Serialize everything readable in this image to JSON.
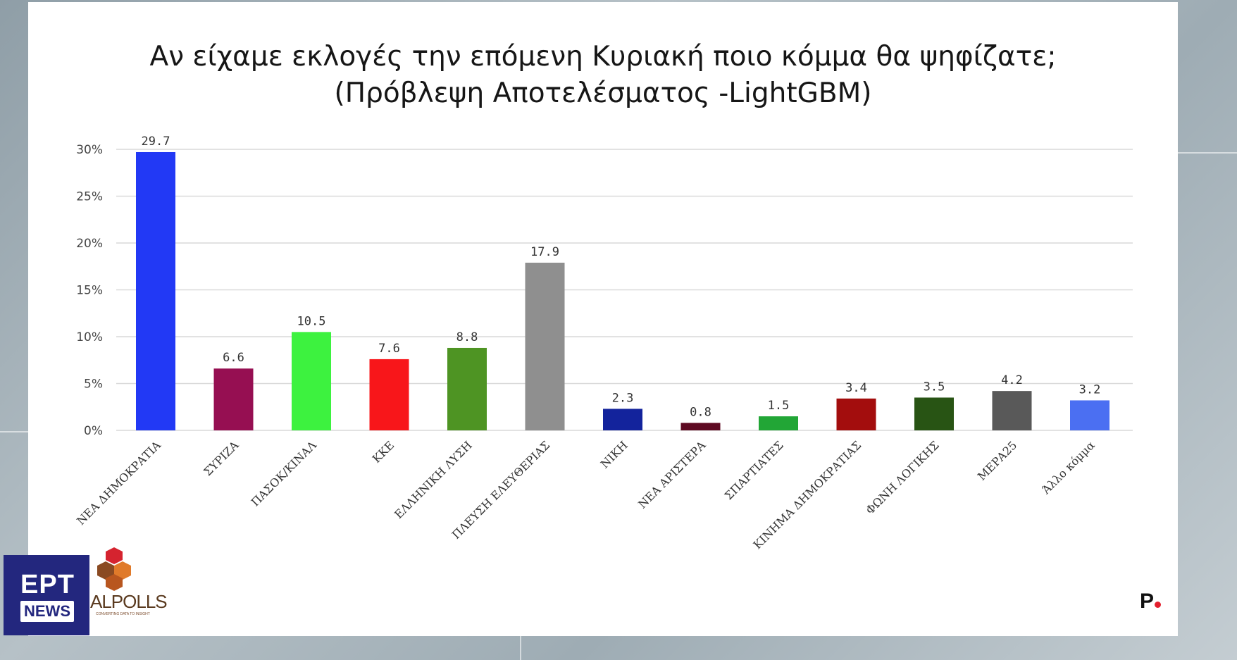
{
  "branding": {
    "ert_text": "ΕΡΤ",
    "news_text": "NEWS",
    "alpolls_text": "ALPOLLS",
    "alpolls_tagline": "CONVERTING DATA TO INSIGHT",
    "p_letter": "P"
  },
  "chart_data": {
    "type": "bar",
    "title": "Αν είχαμε εκλογές την επόμενη Κυριακή ποιο κόμμα θα ψηφίζατε;",
    "subtitle": "(Πρόβλεψη Αποτελέσματος -LightGBM)",
    "xlabel": "",
    "ylabel": "",
    "ylim": [
      0,
      30
    ],
    "y_ticks": [
      0,
      5,
      10,
      15,
      20,
      25,
      30
    ],
    "y_tick_labels": [
      "0%",
      "5%",
      "10%",
      "15%",
      "20%",
      "25%",
      "30%"
    ],
    "grid": true,
    "categories": [
      "ΝΕΑ ΔΗΜΟΚΡΑΤΙΑ",
      "ΣΥΡΙΖΑ",
      "ΠΑΣΟΚ/ΚΙΝΑΛ",
      "ΚΚΕ",
      "ΕΛΛΗΝΙΚΗ ΛΥΣΗ",
      "ΠΛΕΥΣΗ ΕΛΕΥΘΕΡΙΑΣ",
      "ΝΙΚΗ",
      "ΝΕΑ ΑΡΙΣΤΕΡΑ",
      "ΣΠΑΡΤΙΑΤΕΣ",
      "ΚΙΝΗΜΑ ΔΗΜΟΚΡΑΤΙΑΣ",
      "ΦΩΝΗ ΛΟΓΙΚΗΣ",
      "ΜΕΡΑ25",
      "Άλλο κόμμα"
    ],
    "values": [
      29.7,
      6.6,
      10.5,
      7.6,
      8.8,
      17.9,
      2.3,
      0.8,
      1.5,
      3.4,
      3.5,
      4.2,
      3.2
    ],
    "value_labels": [
      "29.7",
      "6.6",
      "10.5",
      "7.6",
      "8.8",
      "17.9",
      "2.3",
      "0.8",
      "1.5",
      "3.4",
      "3.5",
      "4.2",
      "3.2"
    ],
    "colors": [
      "#2239f5",
      "#960f52",
      "#3df23f",
      "#f8161a",
      "#4e9423",
      "#8f8f8f",
      "#13239c",
      "#5e0a22",
      "#22a636",
      "#a30d0d",
      "#285414",
      "#595959",
      "#4b6ff2"
    ]
  }
}
